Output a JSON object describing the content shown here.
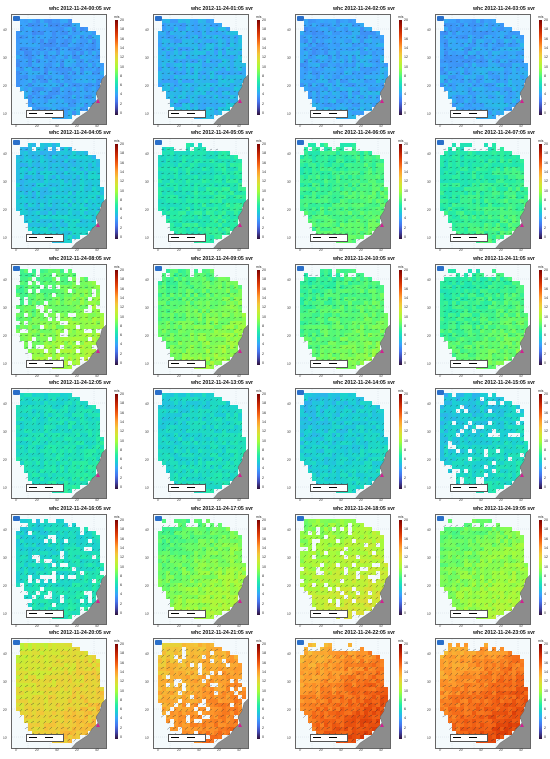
{
  "panels": [
    {
      "title": "whc 2012-11-24-00:05 svr",
      "level": 0.2,
      "high": 0.22,
      "coverage": "full"
    },
    {
      "title": "whc 2012-11-24-01:05 svr",
      "level": 0.22,
      "high": 0.26,
      "coverage": "full"
    },
    {
      "title": "whc 2012-11-24-02:05 svr",
      "level": 0.2,
      "high": 0.24,
      "coverage": "full"
    },
    {
      "title": "whc 2012-11-24-03:05 svr",
      "level": 0.2,
      "high": 0.24,
      "coverage": "full"
    },
    {
      "title": "whc 2012-11-24-04:05 svr",
      "level": 0.25,
      "high": 0.3,
      "coverage": "mid"
    },
    {
      "title": "whc 2012-11-24-05:05 svr",
      "level": 0.32,
      "high": 0.38,
      "coverage": "mid"
    },
    {
      "title": "whc 2012-11-24-06:05 svr",
      "level": 0.35,
      "high": 0.45,
      "coverage": "mid"
    },
    {
      "title": "whc 2012-11-24-07:05 svr",
      "level": 0.33,
      "high": 0.42,
      "coverage": "mid"
    },
    {
      "title": "whc 2012-11-24-08:05 svr",
      "level": 0.38,
      "high": 0.55,
      "coverage": "broken"
    },
    {
      "title": "whc 2012-11-24-09:05 svr",
      "level": 0.38,
      "high": 0.52,
      "coverage": "mid"
    },
    {
      "title": "whc 2012-11-24-10:05 svr",
      "level": 0.35,
      "high": 0.5,
      "coverage": "mid"
    },
    {
      "title": "whc 2012-11-24-11:05 svr",
      "level": 0.33,
      "high": 0.48,
      "coverage": "mid"
    },
    {
      "title": "whc 2012-11-24-12:05 svr",
      "level": 0.3,
      "high": 0.36,
      "coverage": "full"
    },
    {
      "title": "whc 2012-11-24-13:05 svr",
      "level": 0.28,
      "high": 0.34,
      "coverage": "full"
    },
    {
      "title": "whc 2012-11-24-14:05 svr",
      "level": 0.26,
      "high": 0.32,
      "coverage": "full"
    },
    {
      "title": "whc 2012-11-24-15:05 svr",
      "level": 0.25,
      "high": 0.35,
      "coverage": "broken"
    },
    {
      "title": "whc 2012-11-24-16:05 svr",
      "level": 0.28,
      "high": 0.36,
      "coverage": "broken"
    },
    {
      "title": "whc 2012-11-24-17:05 svr",
      "level": 0.38,
      "high": 0.55,
      "coverage": "mid"
    },
    {
      "title": "whc 2012-11-24-18:05 svr",
      "level": 0.45,
      "high": 0.62,
      "coverage": "broken"
    },
    {
      "title": "whc 2012-11-24-19:05 svr",
      "level": 0.4,
      "high": 0.55,
      "coverage": "mid"
    },
    {
      "title": "whc 2012-11-24-20:05 svr",
      "level": 0.55,
      "high": 0.68,
      "coverage": "full"
    },
    {
      "title": "whc 2012-11-24-21:05 svr",
      "level": 0.62,
      "high": 0.8,
      "coverage": "broken"
    },
    {
      "title": "whc 2012-11-24-22:05 svr",
      "level": 0.65,
      "high": 0.88,
      "coverage": "mid"
    },
    {
      "title": "whc 2012-11-24-23:05 svr",
      "level": 0.66,
      "high": 0.88,
      "coverage": "mid"
    }
  ],
  "colorbar": {
    "unit": "m/s",
    "ticks": [
      "20",
      "18",
      "16",
      "14",
      "12",
      "10",
      "8",
      "6",
      "4",
      "2",
      "0"
    ]
  },
  "axes": {
    "lat_labels": [
      "40'",
      "30'",
      "20'",
      "10'"
    ],
    "lon_labels": [
      "0'",
      "20'",
      "40'",
      "20'",
      "40'"
    ]
  },
  "colors": {
    "land": "#8c8c8c",
    "sea_background": "#f4fafc",
    "colormap": [
      "#30123b",
      "#4145ab",
      "#4675ed",
      "#39a2fc",
      "#1bcfd4",
      "#24eca6",
      "#61fc6c",
      "#a4fc3b",
      "#d1e834",
      "#f3c63a",
      "#fe9b2d",
      "#f36315",
      "#d93806",
      "#b11901",
      "#7a0403"
    ]
  },
  "icons": {
    "logo": "radar-logo-icon",
    "scale": "scale-bar-icon"
  }
}
